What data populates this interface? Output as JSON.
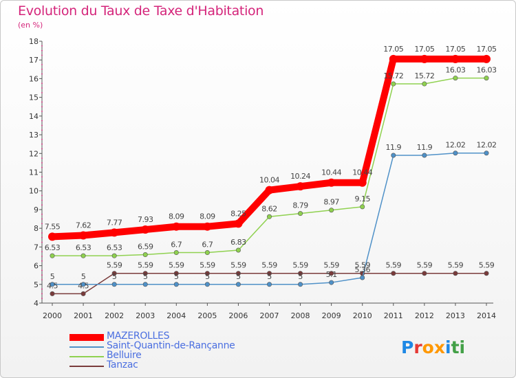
{
  "title": "Evolution du Taux de Taxe d'Habitation",
  "unit": "(en %)",
  "brand": {
    "letters": [
      "P",
      "r",
      "o",
      "x",
      "i",
      "t",
      "i"
    ],
    "colors": [
      "#1e88e5",
      "#e53935",
      "#ff9800",
      "#ff9800",
      "#1e88e5",
      "#43a047",
      "#43a047"
    ]
  },
  "chart_data": {
    "type": "line",
    "x": [
      "2000",
      "2001",
      "2002",
      "2003",
      "2004",
      "2005",
      "2006",
      "2007",
      "2008",
      "2009",
      "2010",
      "2011",
      "2012",
      "2013",
      "2014"
    ],
    "ylim": [
      4,
      18
    ],
    "yticks": [
      "4",
      "5",
      "6",
      "7",
      "8",
      "9",
      "10",
      "11",
      "12",
      "13",
      "14",
      "15",
      "16",
      "17",
      "18"
    ],
    "grid": false,
    "legend_position": "bottom-left",
    "series": [
      {
        "name": "MAZEROLLES",
        "color": "#ff0000",
        "values": [
          7.55,
          7.62,
          7.77,
          7.93,
          8.09,
          8.09,
          8.25,
          10.04,
          10.24,
          10.44,
          10.44,
          17.05,
          17.05,
          17.05,
          17.05
        ],
        "labels": [
          "7.55",
          "7.62",
          "7.77",
          "7.93",
          "8.09",
          "8.09",
          "8.25",
          "10.04",
          "10.24",
          "10.44",
          "10.44",
          "17.05",
          "17.05",
          "17.05",
          "17.05"
        ]
      },
      {
        "name": "Saint-Quantin-de-Rançanne",
        "color": "#4f91c8",
        "values": [
          5,
          5,
          5,
          5,
          5,
          5,
          5,
          5,
          5,
          5.1,
          5.36,
          11.9,
          11.9,
          12.02,
          12.02
        ],
        "labels": [
          "5",
          "5",
          "5",
          "5",
          "5",
          "5",
          "5",
          "5",
          "5",
          "5.1",
          "5.36",
          "11.9",
          "11.9",
          "12.02",
          "12.02"
        ]
      },
      {
        "name": "Belluire",
        "color": "#8fd14f",
        "values": [
          6.53,
          6.53,
          6.53,
          6.59,
          6.7,
          6.7,
          6.83,
          8.62,
          8.79,
          8.97,
          9.15,
          15.72,
          15.72,
          16.03,
          16.03
        ],
        "labels": [
          "6.53",
          "6.53",
          "6.53",
          "6.59",
          "6.7",
          "6.7",
          "6.83",
          "8.62",
          "8.79",
          "8.97",
          "9.15",
          "15.72",
          "15.72",
          "16.03",
          "16.03"
        ]
      },
      {
        "name": "Tanzac",
        "color": "#7a3b3b",
        "values": [
          4.5,
          4.5,
          5.59,
          5.59,
          5.59,
          5.59,
          5.59,
          5.59,
          5.59,
          5.59,
          5.59,
          5.59,
          5.59,
          5.59,
          5.59
        ],
        "labels": [
          "4.5",
          "4.5",
          "5.59",
          "5.59",
          "5.59",
          "5.59",
          "5.59",
          "5.59",
          "5.59",
          "5.59",
          "5.59",
          "5.59",
          "5.59",
          "5.59",
          "5.59"
        ]
      }
    ]
  }
}
